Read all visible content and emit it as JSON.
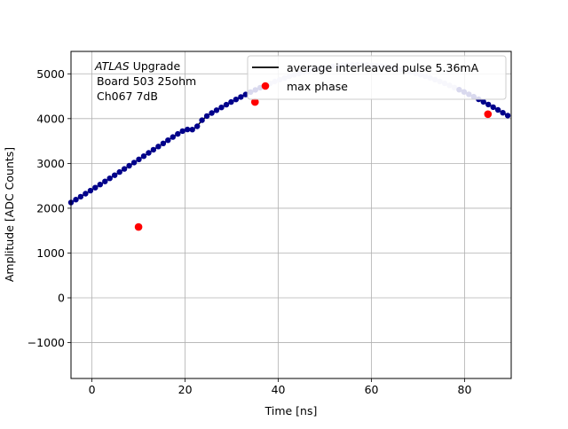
{
  "chart_data": {
    "type": "scatter",
    "xlabel": "Time [ns]",
    "ylabel": "Amplitude [ADC Counts]",
    "xlim": [
      -4.5,
      90
    ],
    "ylim": [
      -1800,
      5500
    ],
    "xticks": [
      0,
      20,
      40,
      60,
      80
    ],
    "yticks": [
      -1000,
      0,
      1000,
      2000,
      3000,
      4000,
      5000
    ],
    "grid": true,
    "legend_position": "upper-right",
    "annotation": {
      "lines": [
        {
          "italic": "ATLAS",
          "rest": " Upgrade"
        },
        {
          "italic": "",
          "rest": "Board 503 25ohm"
        },
        {
          "italic": "",
          "rest": "Ch067 7dB"
        }
      ]
    },
    "series": [
      {
        "name": "average interleaved pulse 5.36mA",
        "kind": "line-with-points",
        "line_color": "#000000",
        "point_color": "#00008b",
        "faded_point_color": "#c8c8ec",
        "fade_range": [
          37,
          78
        ],
        "x_start": -4.5,
        "x_step": 1.0416667,
        "count": 91,
        "pulse_model": {
          "amplitude": 5200,
          "peak_time": 57,
          "width": 46,
          "dip_at": 22,
          "dip_amount": 120
        }
      },
      {
        "name": "max phase",
        "kind": "points",
        "color": "#ff0000",
        "points": [
          [
            10,
            1580
          ],
          [
            35,
            4370
          ],
          [
            85,
            4100
          ]
        ]
      }
    ]
  }
}
